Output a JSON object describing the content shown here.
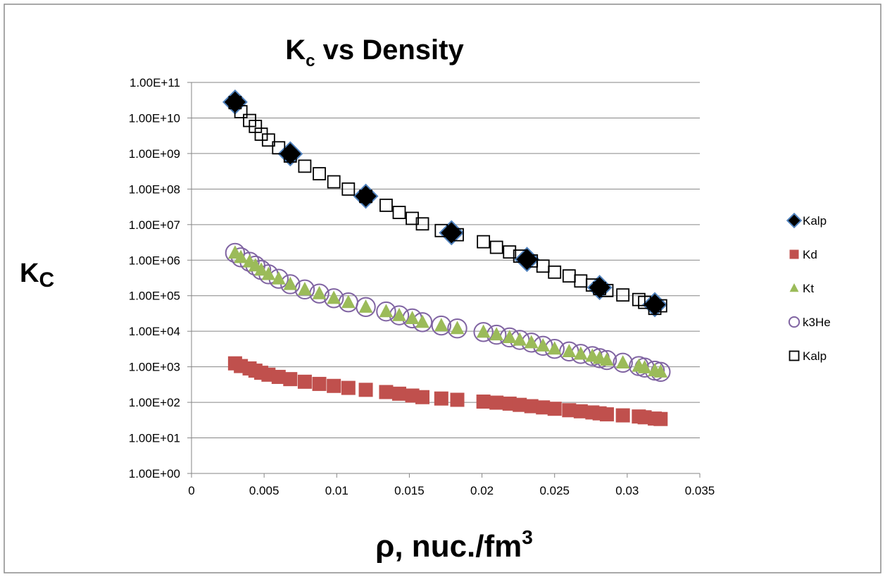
{
  "chart_data": {
    "type": "scatter",
    "title": "K",
    "title_sub": "c",
    "title_rest": " vs Density",
    "ylabel": "K",
    "ylabel_sub": "C",
    "xlabel": "ρ, nuc./fm",
    "xlabel_sup": "3",
    "y_scale": "log",
    "xlim": [
      0,
      0.035
    ],
    "ylim": [
      1,
      100000000000
    ],
    "x_ticks": [
      "0",
      "0.005",
      "0.01",
      "0.015",
      "0.02",
      "0.025",
      "0.03",
      "0.035"
    ],
    "y_ticks": [
      "1.00E+00",
      "1.00E+01",
      "1.00E+02",
      "1.00E+03",
      "1.00E+04",
      "1.00E+05",
      "1.00E+06",
      "1.00E+07",
      "1.00E+08",
      "1.00E+09",
      "1.00E+10",
      "1.00E+11"
    ],
    "grid": "horizontal",
    "legend_position": "right",
    "series": [
      {
        "name": "Kalp",
        "marker": "diamond",
        "color": "#000000",
        "x": [
          0.003,
          0.0068,
          0.012,
          0.0179,
          0.0231,
          0.0281,
          0.0319
        ],
        "y": [
          28000000000.0,
          980000000.0,
          63000000.0,
          5900000.0,
          1050000.0,
          170000.0,
          56000.0
        ]
      },
      {
        "name": "Kd",
        "marker": "square",
        "color": "#c0504d",
        "x": [
          0.003,
          0.0034,
          0.004,
          0.0044,
          0.0048,
          0.0053,
          0.006,
          0.0068,
          0.0078,
          0.0088,
          0.0098,
          0.0108,
          0.012,
          0.0134,
          0.0143,
          0.0152,
          0.0159,
          0.0172,
          0.0183,
          0.0201,
          0.021,
          0.0219,
          0.0226,
          0.0234,
          0.0242,
          0.025,
          0.026,
          0.0268,
          0.0276,
          0.0281,
          0.0286,
          0.0297,
          0.0308,
          0.0312,
          0.0319,
          0.0323
        ],
        "y": [
          1250,
          1050,
          900,
          780,
          680,
          600,
          520,
          450,
          380,
          330,
          290,
          255,
          225,
          195,
          175,
          155,
          140,
          128,
          118,
          105,
          98,
          92,
          85,
          78,
          72,
          66,
          60,
          56,
          52,
          49,
          46,
          43,
          40,
          38,
          35,
          34
        ]
      },
      {
        "name": "Kt",
        "marker": "triangle",
        "color": "#9bbb59",
        "x": [
          0.003,
          0.0034,
          0.004,
          0.0044,
          0.0048,
          0.0053,
          0.006,
          0.0068,
          0.0078,
          0.0088,
          0.0098,
          0.0108,
          0.012,
          0.0134,
          0.0143,
          0.0152,
          0.0159,
          0.0172,
          0.0183,
          0.0201,
          0.021,
          0.0219,
          0.0226,
          0.0234,
          0.0242,
          0.025,
          0.026,
          0.0268,
          0.0276,
          0.0281,
          0.0286,
          0.0297,
          0.0308,
          0.0312,
          0.0319,
          0.0323
        ],
        "y": [
          1600000.0,
          1200000.0,
          900000.0,
          700000.0,
          530000.0,
          400000.0,
          300000.0,
          210000.0,
          150000.0,
          115000.0,
          85000.0,
          65000.0,
          48000.0,
          36000.0,
          28000.0,
          23000.0,
          18000.0,
          14500.0,
          12000.0,
          9500.0,
          8000.0,
          6700.0,
          5700.0,
          4800.0,
          3900.0,
          3200.0,
          2700.0,
          2300.0,
          2000.0,
          1750.0,
          1550.0,
          1300.0,
          1050.0,
          950,
          780,
          720
        ]
      },
      {
        "name": "k3He",
        "marker": "circle-open",
        "color": "#8064a2",
        "x": [
          0.003,
          0.0034,
          0.004,
          0.0044,
          0.0048,
          0.0053,
          0.006,
          0.0068,
          0.0078,
          0.0088,
          0.0098,
          0.0108,
          0.012,
          0.0134,
          0.0143,
          0.0152,
          0.0159,
          0.0172,
          0.0183,
          0.0201,
          0.021,
          0.0219,
          0.0226,
          0.0234,
          0.0242,
          0.025,
          0.026,
          0.0268,
          0.0276,
          0.0281,
          0.0286,
          0.0297,
          0.0308,
          0.0312,
          0.0319,
          0.0323
        ],
        "y": [
          1600000.0,
          1200000.0,
          900000.0,
          700000.0,
          530000.0,
          400000.0,
          300000.0,
          210000.0,
          150000.0,
          115000.0,
          85000.0,
          65000.0,
          48000.0,
          36000.0,
          28000.0,
          23000.0,
          18000.0,
          14500.0,
          12000.0,
          9500.0,
          8000.0,
          6700.0,
          5700.0,
          4800.0,
          3900.0,
          3200.0,
          2700.0,
          2300.0,
          2000.0,
          1750.0,
          1550.0,
          1300.0,
          1050.0,
          950,
          780,
          720
        ]
      },
      {
        "name": "Kalp",
        "marker": "square-open",
        "color": "#000000",
        "x": [
          0.003,
          0.0034,
          0.004,
          0.0044,
          0.0048,
          0.0053,
          0.006,
          0.0068,
          0.0078,
          0.0088,
          0.0098,
          0.0108,
          0.012,
          0.0134,
          0.0143,
          0.0152,
          0.0159,
          0.0172,
          0.0183,
          0.0201,
          0.021,
          0.0219,
          0.0226,
          0.0234,
          0.0242,
          0.025,
          0.026,
          0.0268,
          0.0276,
          0.0281,
          0.0286,
          0.0297,
          0.0308,
          0.0312,
          0.0319,
          0.0323
        ],
        "y": [
          27000000000.0,
          15000000000.0,
          8500000000.0,
          5800000000.0,
          3500000000.0,
          2400000000.0,
          1450000000.0,
          850000000.0,
          440000000.0,
          270000000.0,
          160000000.0,
          100000000.0,
          62000000.0,
          35000000.0,
          22000000.0,
          15000000.0,
          10500000.0,
          6800000.0,
          5200000.0,
          3300000.0,
          2300000.0,
          1700000.0,
          1300000.0,
          950000.0,
          680000.0,
          460000.0,
          360000.0,
          260000.0,
          200000.0,
          160000.0,
          140000.0,
          105000.0,
          78000.0,
          65000.0,
          44000.0,
          52000.0
        ]
      }
    ]
  }
}
